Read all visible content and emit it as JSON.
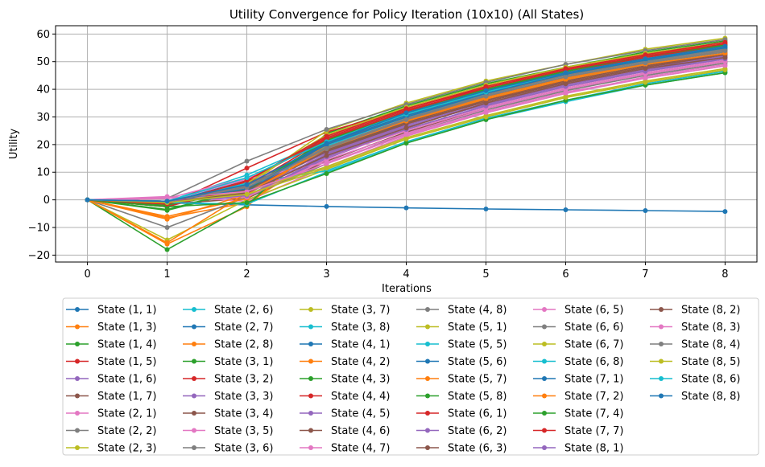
{
  "chart_data": {
    "type": "line",
    "title": "Utility Convergence for Policy Iteration (10x10) (All States)",
    "xlabel": "Iterations",
    "ylabel": "Utility",
    "xlim": [
      -0.4,
      8.4
    ],
    "ylim": [
      -22.5,
      63
    ],
    "x_ticks": [
      0,
      1,
      2,
      3,
      4,
      5,
      6,
      7,
      8
    ],
    "y_ticks": [
      -20,
      -10,
      0,
      10,
      20,
      30,
      40,
      50,
      60
    ],
    "y_tick_labels": [
      "−20",
      "−10",
      "0",
      "10",
      "20",
      "30",
      "40",
      "50",
      "60"
    ],
    "grid": true,
    "legend_placement": "below plot, 6 columns",
    "x": [
      0,
      1,
      2,
      3,
      4,
      5,
      6,
      7,
      8
    ],
    "series": [
      {
        "name": "State (1, 1)",
        "color": "#1f77b4",
        "values": [
          0,
          -1.1,
          -1.8,
          -2.4,
          -2.9,
          -3.3,
          -3.6,
          -3.9,
          -4.2
        ]
      },
      {
        "name": "State (1, 3)",
        "color": "#ff7f0e",
        "values": [
          0,
          -6.5,
          -1.0,
          16.5,
          27.0,
          36.0,
          43.0,
          48.5,
          52.5
        ]
      },
      {
        "name": "State (1, 4)",
        "color": "#2ca02c",
        "values": [
          0,
          -3.8,
          3.5,
          17.5,
          28.0,
          36.5,
          43.5,
          49.0,
          53.0
        ]
      },
      {
        "name": "State (1, 5)",
        "color": "#d62728",
        "values": [
          0,
          -2.5,
          6.0,
          19.0,
          29.0,
          37.5,
          44.0,
          49.5,
          54.0
        ]
      },
      {
        "name": "State (1, 6)",
        "color": "#9467bd",
        "values": [
          0,
          -0.8,
          1.5,
          15.0,
          25.5,
          34.0,
          41.0,
          46.5,
          51.0
        ]
      },
      {
        "name": "State (1, 7)",
        "color": "#8c564b",
        "values": [
          0,
          -1.5,
          0.5,
          14.0,
          24.5,
          33.0,
          40.0,
          45.5,
          50.0
        ]
      },
      {
        "name": "State (2, 1)",
        "color": "#e377c2",
        "values": [
          0,
          1.2,
          -0.5,
          12.0,
          23.0,
          31.5,
          38.5,
          44.5,
          49.0
        ]
      },
      {
        "name": "State (2, 2)",
        "color": "#7f7f7f",
        "values": [
          0,
          -10.0,
          1.0,
          13.0,
          24.0,
          32.5,
          39.5,
          45.0,
          49.5
        ]
      },
      {
        "name": "State (2, 3)",
        "color": "#bcbd22",
        "values": [
          0,
          -14.5,
          0.0,
          11.0,
          22.0,
          30.0,
          37.0,
          42.5,
          47.0
        ]
      },
      {
        "name": "State (2, 6)",
        "color": "#17becf",
        "values": [
          0,
          -0.5,
          9.0,
          21.5,
          31.5,
          39.5,
          45.5,
          50.5,
          54.5
        ]
      },
      {
        "name": "State (2, 7)",
        "color": "#1f77b4",
        "values": [
          0,
          -1.0,
          7.0,
          22.0,
          32.0,
          40.0,
          46.0,
          51.5,
          55.5
        ]
      },
      {
        "name": "State (2, 8)",
        "color": "#ff7f0e",
        "values": [
          0,
          -16.0,
          -2.5,
          23.0,
          33.0,
          41.0,
          47.5,
          52.5,
          56.5
        ]
      },
      {
        "name": "State (3, 1)",
        "color": "#2ca02c",
        "values": [
          0,
          -18.0,
          -2.0,
          24.0,
          34.0,
          42.0,
          48.0,
          53.5,
          57.5
        ]
      },
      {
        "name": "State (3, 2)",
        "color": "#d62728",
        "values": [
          0,
          -2.0,
          11.5,
          24.5,
          33.0,
          40.5,
          47.0,
          52.0,
          56.0
        ]
      },
      {
        "name": "State (3, 3)",
        "color": "#9467bd",
        "values": [
          0,
          -0.5,
          1.0,
          16.0,
          26.5,
          34.5,
          41.5,
          47.0,
          51.5
        ]
      },
      {
        "name": "State (3, 4)",
        "color": "#8c564b",
        "values": [
          0,
          -1.0,
          4.0,
          17.0,
          27.5,
          35.5,
          42.5,
          48.0,
          52.0
        ]
      },
      {
        "name": "State (3, 5)",
        "color": "#e377c2",
        "values": [
          0,
          0.5,
          8.0,
          15.5,
          25.0,
          33.5,
          40.5,
          46.0,
          50.5
        ]
      },
      {
        "name": "State (3, 6)",
        "color": "#7f7f7f",
        "values": [
          0,
          -0.5,
          2.0,
          18.0,
          28.5,
          37.0,
          44.0,
          49.5,
          53.5
        ]
      },
      {
        "name": "State (3, 7)",
        "color": "#bcbd22",
        "values": [
          0,
          -1.2,
          5.0,
          25.0,
          35.0,
          43.0,
          49.0,
          54.5,
          58.5
        ]
      },
      {
        "name": "State (3, 8)",
        "color": "#17becf",
        "values": [
          0,
          -1.0,
          3.0,
          19.5,
          30.0,
          38.0,
          45.0,
          50.0,
          54.5
        ]
      },
      {
        "name": "State (4, 1)",
        "color": "#1f77b4",
        "values": [
          0,
          -0.5,
          2.5,
          18.5,
          29.5,
          37.5,
          44.5,
          49.5,
          54.0
        ]
      },
      {
        "name": "State (4, 2)",
        "color": "#ff7f0e",
        "values": [
          0,
          -6.0,
          0.5,
          20.0,
          30.5,
          38.5,
          45.0,
          50.5,
          55.0
        ]
      },
      {
        "name": "State (4, 3)",
        "color": "#2ca02c",
        "values": [
          0,
          -2.0,
          3.5,
          21.0,
          31.0,
          39.5,
          46.0,
          51.0,
          55.5
        ]
      },
      {
        "name": "State (4, 4)",
        "color": "#d62728",
        "values": [
          0,
          -1.5,
          6.5,
          22.5,
          32.5,
          40.0,
          46.5,
          51.5,
          56.0
        ]
      },
      {
        "name": "State (4, 5)",
        "color": "#9467bd",
        "values": [
          0,
          -0.5,
          4.5,
          17.0,
          27.0,
          35.0,
          42.0,
          47.5,
          52.0
        ]
      },
      {
        "name": "State (4, 6)",
        "color": "#8c564b",
        "values": [
          0,
          -1.5,
          5.5,
          18.0,
          28.0,
          36.5,
          43.0,
          48.5,
          53.0
        ]
      },
      {
        "name": "State (4, 7)",
        "color": "#e377c2",
        "values": [
          0,
          -0.5,
          7.5,
          13.5,
          23.5,
          32.0,
          39.0,
          44.0,
          48.5
        ]
      },
      {
        "name": "State (4, 8)",
        "color": "#7f7f7f",
        "values": [
          0,
          0.5,
          14.0,
          25.5,
          34.5,
          42.5,
          49.0,
          54.0,
          58.0
        ]
      },
      {
        "name": "State (5, 1)",
        "color": "#bcbd22",
        "values": [
          0,
          -1.5,
          6.0,
          23.5,
          33.5,
          41.5,
          48.0,
          53.0,
          57.0
        ]
      },
      {
        "name": "State (5, 5)",
        "color": "#17becf",
        "values": [
          0,
          -1.0,
          6.0,
          10.5,
          21.0,
          29.5,
          36.0,
          42.0,
          46.5
        ]
      },
      {
        "name": "State (5, 6)",
        "color": "#1f77b4",
        "values": [
          0,
          -0.5,
          3.0,
          20.5,
          30.5,
          39.0,
          45.5,
          51.0,
          55.0
        ]
      },
      {
        "name": "State (5, 7)",
        "color": "#ff7f0e",
        "values": [
          0,
          -7.0,
          2.0,
          19.0,
          29.0,
          37.0,
          44.0,
          49.5,
          54.0
        ]
      },
      {
        "name": "State (5, 8)",
        "color": "#2ca02c",
        "values": [
          0,
          -3.5,
          4.0,
          21.5,
          32.0,
          40.0,
          46.5,
          52.0,
          56.0
        ]
      },
      {
        "name": "State (6, 1)",
        "color": "#d62728",
        "values": [
          0,
          -2.5,
          5.0,
          22.0,
          32.0,
          40.5,
          47.0,
          52.0,
          56.5
        ]
      },
      {
        "name": "State (6, 2)",
        "color": "#9467bd",
        "values": [
          0,
          -0.5,
          2.5,
          16.5,
          26.5,
          34.5,
          41.5,
          47.0,
          51.5
        ]
      },
      {
        "name": "State (6, 3)",
        "color": "#8c564b",
        "values": [
          0,
          -1.5,
          3.5,
          17.5,
          27.5,
          36.0,
          42.5,
          48.0,
          52.5
        ]
      },
      {
        "name": "State (6, 5)",
        "color": "#e377c2",
        "values": [
          0,
          1.0,
          1.0,
          14.5,
          24.0,
          33.0,
          40.0,
          45.5,
          50.0
        ]
      },
      {
        "name": "State (6, 6)",
        "color": "#7f7f7f",
        "values": [
          0,
          -0.5,
          5.0,
          19.0,
          29.5,
          38.0,
          45.0,
          50.0,
          54.5
        ]
      },
      {
        "name": "State (6, 7)",
        "color": "#bcbd22",
        "values": [
          0,
          -1.0,
          3.0,
          12.0,
          22.5,
          30.5,
          37.5,
          43.0,
          47.5
        ]
      },
      {
        "name": "State (6, 8)",
        "color": "#17becf",
        "values": [
          0,
          -1.0,
          -1.5,
          10.0,
          20.5,
          29.0,
          35.5,
          41.5,
          46.0
        ]
      },
      {
        "name": "State (7, 1)",
        "color": "#1f77b4",
        "values": [
          0,
          -0.5,
          4.0,
          20.0,
          30.0,
          38.5,
          45.5,
          50.5,
          55.0
        ]
      },
      {
        "name": "State (7, 2)",
        "color": "#ff7f0e",
        "values": [
          0,
          -15.5,
          2.5,
          18.5,
          28.5,
          36.5,
          43.5,
          49.0,
          53.0
        ]
      },
      {
        "name": "State (7, 4)",
        "color": "#2ca02c",
        "values": [
          0,
          -2.5,
          -1.0,
          9.5,
          20.5,
          29.0,
          36.0,
          41.5,
          46.0
        ]
      },
      {
        "name": "State (7, 7)",
        "color": "#d62728",
        "values": [
          0,
          -1.5,
          7.0,
          23.0,
          33.0,
          41.0,
          47.5,
          52.5,
          57.0
        ]
      },
      {
        "name": "State (8, 1)",
        "color": "#9467bd",
        "values": [
          0,
          -0.5,
          1.5,
          15.5,
          25.5,
          34.0,
          41.0,
          46.5,
          51.0
        ]
      },
      {
        "name": "State (8, 2)",
        "color": "#8c564b",
        "values": [
          0,
          -1.0,
          2.5,
          16.0,
          26.0,
          35.0,
          42.0,
          47.5,
          51.5
        ]
      },
      {
        "name": "State (8, 3)",
        "color": "#e377c2",
        "values": [
          0,
          0.5,
          3.0,
          13.0,
          23.5,
          31.5,
          38.5,
          44.0,
          48.5
        ]
      },
      {
        "name": "State (8, 4)",
        "color": "#7f7f7f",
        "values": [
          0,
          -0.5,
          4.5,
          18.5,
          29.0,
          37.5,
          44.5,
          49.5,
          54.0
        ]
      },
      {
        "name": "State (8, 5)",
        "color": "#bcbd22",
        "values": [
          0,
          -1.0,
          2.0,
          11.5,
          22.0,
          30.0,
          37.0,
          42.5,
          47.0
        ]
      },
      {
        "name": "State (8, 6)",
        "color": "#17becf",
        "values": [
          0,
          -0.5,
          8.0,
          21.0,
          31.0,
          39.0,
          46.0,
          51.0,
          55.5
        ]
      },
      {
        "name": "State (8, 8)",
        "color": "#1f77b4",
        "values": [
          0,
          -0.5,
          5.5,
          20.5,
          31.5,
          39.5,
          46.0,
          51.0,
          55.5
        ]
      }
    ]
  }
}
